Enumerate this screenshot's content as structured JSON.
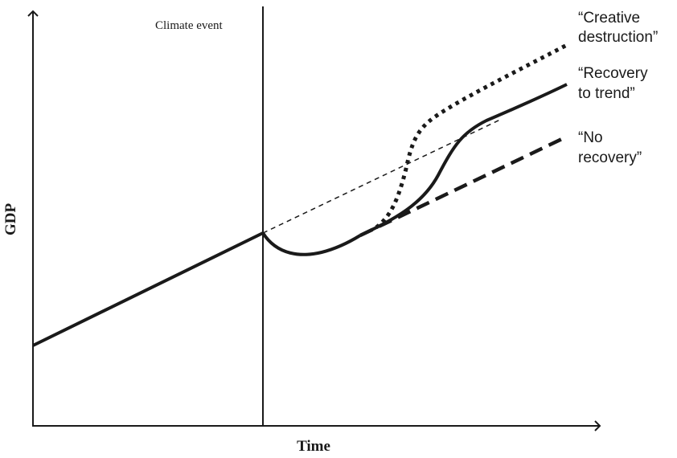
{
  "axes": {
    "x_label": "Time",
    "y_label": "GDP"
  },
  "event": {
    "label": "Climate event"
  },
  "scenarios": [
    {
      "id": "creative-destruction",
      "lines": [
        "“Creative",
        "destruction”"
      ],
      "stroke": "#1a1a1a",
      "style": "dotted"
    },
    {
      "id": "recovery-to-trend",
      "lines": [
        "“Recovery",
        "to trend”"
      ],
      "stroke": "#1a1a1a",
      "style": "solid"
    },
    {
      "id": "no-recovery",
      "lines": [
        "“No",
        "recovery”"
      ],
      "stroke": "#1a1a1a",
      "style": "dashed"
    }
  ],
  "colors": {
    "ink": "#1a1a1a",
    "background": "#ffffff"
  }
}
